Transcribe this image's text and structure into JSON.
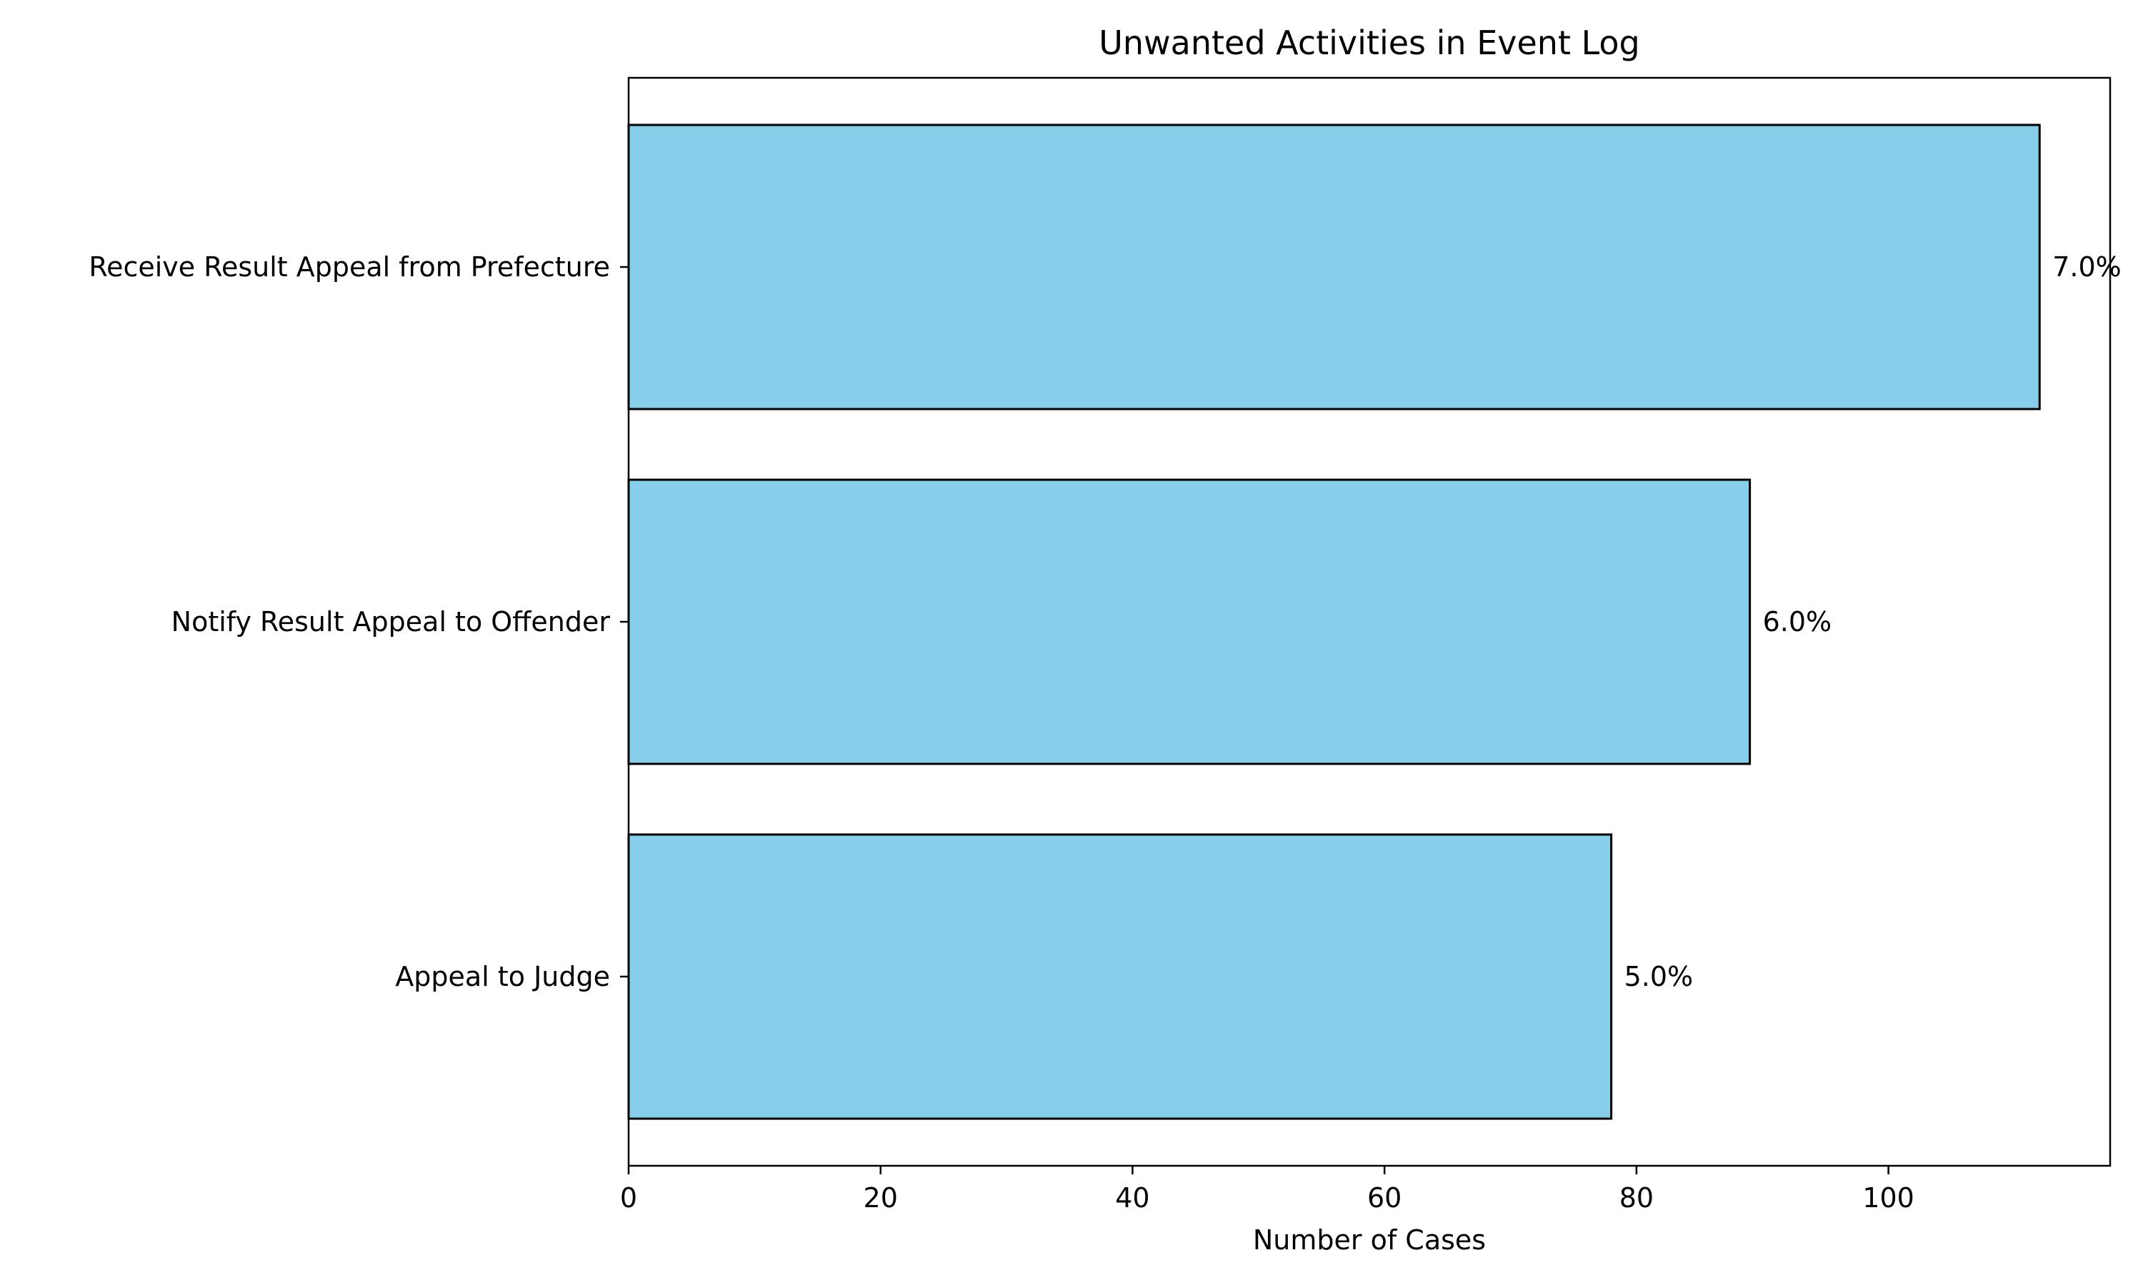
{
  "chart_data": {
    "type": "bar",
    "orientation": "horizontal",
    "title": "Unwanted Activities in Event Log",
    "xlabel": "Number of Cases",
    "ylabel": "",
    "categories": [
      "Receive Result Appeal from Prefecture",
      "Notify Result Appeal to Offender",
      "Appeal to Judge"
    ],
    "values": [
      112,
      89,
      78
    ],
    "value_labels": [
      "7.0%",
      "6.0%",
      "5.0%"
    ],
    "xlim": [
      0,
      117.6
    ],
    "xticks": [
      0,
      20,
      40,
      60,
      80,
      100
    ],
    "xtick_labels": [
      "0",
      "20",
      "40",
      "60",
      "80",
      "100"
    ],
    "grid": false,
    "bar_color": "#87CEEB",
    "bar_edge_color": "#000000"
  }
}
